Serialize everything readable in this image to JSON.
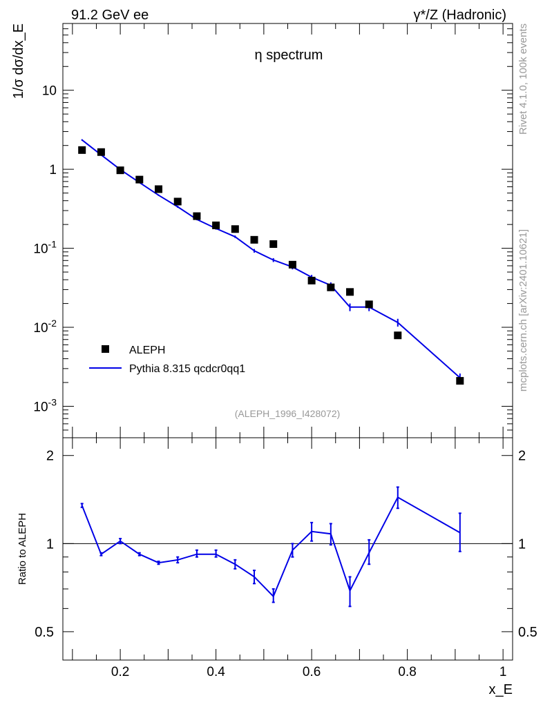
{
  "header": {
    "left": "91.2 GeV ee",
    "right": "γ*/Z (Hadronic)"
  },
  "side_labels": {
    "rivet": "Rivet 4.1.0,  100k events",
    "mcplots": "mcplots.cern.ch [arXiv:2401.10621]"
  },
  "colors": {
    "mc": "#0000e6",
    "data": "#000000",
    "watermark": "#999999"
  },
  "chart_data": [
    {
      "type": "scatter",
      "title": "η spectrum",
      "ylabel": "1/σ  dσ/dx_E",
      "xlabel": "",
      "xlim": [
        0.08,
        1.02
      ],
      "ylim": [
        0.0004,
        70
      ],
      "yscale": "log",
      "ytick_labels": [
        "10^-3",
        "10^-2",
        "10^-1",
        "1",
        "10"
      ],
      "watermark": "(ALEPH_1996_I428072)",
      "legend": [
        "ALEPH",
        "Pythia 8.315 qcdcr0qq1"
      ],
      "series": [
        {
          "name": "ALEPH",
          "style": "markers",
          "x": [
            0.12,
            0.16,
            0.2,
            0.24,
            0.28,
            0.32,
            0.36,
            0.4,
            0.44,
            0.48,
            0.52,
            0.56,
            0.6,
            0.64,
            0.68,
            0.72,
            0.78,
            0.91
          ],
          "y": [
            1.75,
            1.65,
            0.97,
            0.74,
            0.56,
            0.39,
            0.255,
            0.195,
            0.175,
            0.128,
            0.113,
            0.062,
            0.039,
            0.032,
            0.028,
            0.0195,
            0.0079,
            0.0021
          ]
        },
        {
          "name": "Pythia 8.315 qcdcr0qq1",
          "style": "line",
          "x": [
            0.12,
            0.16,
            0.2,
            0.24,
            0.28,
            0.32,
            0.36,
            0.4,
            0.44,
            0.48,
            0.52,
            0.56,
            0.6,
            0.64,
            0.68,
            0.72,
            0.78,
            0.91
          ],
          "y": [
            2.35,
            1.52,
            0.99,
            0.68,
            0.47,
            0.335,
            0.232,
            0.178,
            0.14,
            0.093,
            0.071,
            0.058,
            0.043,
            0.034,
            0.018,
            0.018,
            0.0115,
            0.0023
          ],
          "err_lo": [
            2.3,
            1.5,
            0.97,
            0.665,
            0.46,
            0.325,
            0.226,
            0.172,
            0.135,
            0.088,
            0.067,
            0.054,
            0.04,
            0.031,
            0.016,
            0.016,
            0.0102,
            0.002
          ],
          "err_hi": [
            2.4,
            1.54,
            1.01,
            0.695,
            0.48,
            0.345,
            0.238,
            0.184,
            0.145,
            0.098,
            0.075,
            0.062,
            0.046,
            0.037,
            0.02,
            0.02,
            0.0128,
            0.0026
          ]
        }
      ]
    },
    {
      "type": "line",
      "title": "",
      "ylabel": "Ratio to ALEPH",
      "xlabel": "x_E",
      "xlim": [
        0.08,
        1.02
      ],
      "ylim": [
        0.4,
        2.3
      ],
      "yscale": "log",
      "ytick_labels": [
        "0.5",
        "1",
        "2"
      ],
      "xtick_labels": [
        "0.2",
        "0.4",
        "0.6",
        "0.8",
        "1"
      ],
      "reference_line": 1,
      "series": [
        {
          "name": "Pythia 8.315 qcdcr0qq1 / ALEPH",
          "x": [
            0.12,
            0.16,
            0.2,
            0.24,
            0.28,
            0.32,
            0.36,
            0.4,
            0.44,
            0.48,
            0.52,
            0.56,
            0.6,
            0.64,
            0.68,
            0.72,
            0.78,
            0.91
          ],
          "y": [
            1.35,
            0.92,
            1.02,
            0.92,
            0.86,
            0.88,
            0.92,
            0.92,
            0.85,
            0.77,
            0.66,
            0.95,
            1.1,
            1.08,
            0.69,
            0.93,
            1.44,
            1.09
          ],
          "err_lo": [
            1.33,
            0.91,
            1.0,
            0.91,
            0.85,
            0.86,
            0.9,
            0.9,
            0.82,
            0.73,
            0.63,
            0.9,
            1.02,
            0.99,
            0.61,
            0.85,
            1.32,
            0.94
          ],
          "err_hi": [
            1.37,
            0.93,
            1.04,
            0.93,
            0.87,
            0.9,
            0.95,
            0.95,
            0.88,
            0.81,
            0.7,
            1.0,
            1.18,
            1.17,
            0.77,
            1.03,
            1.56,
            1.27
          ]
        }
      ]
    }
  ]
}
